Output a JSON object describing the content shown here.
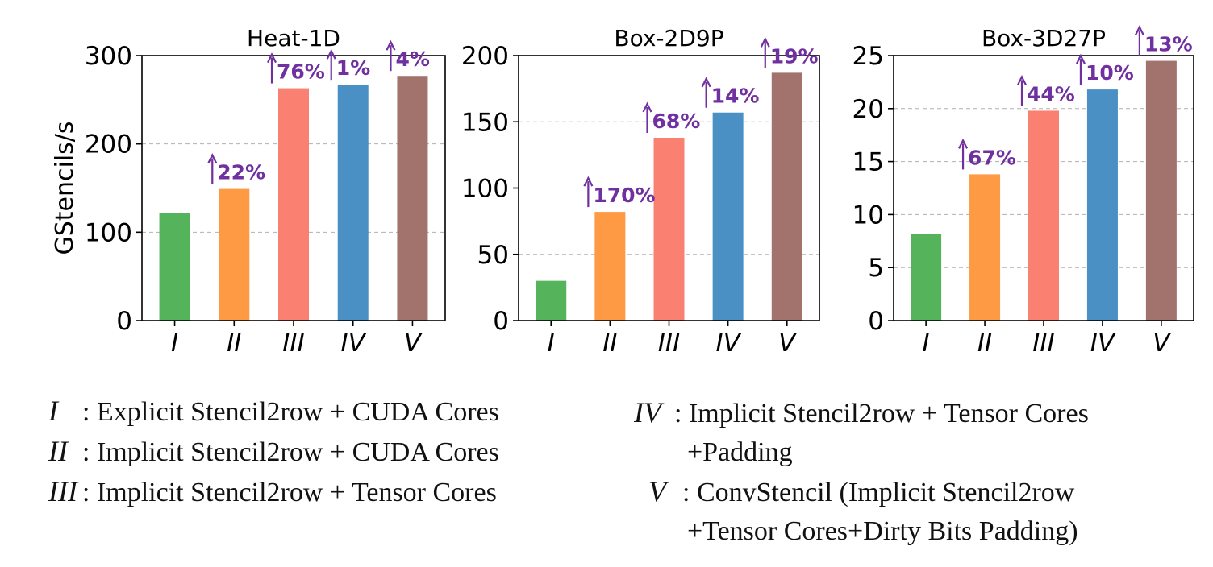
{
  "colors": {
    "I": "#55b35b",
    "II": "#fd9a43",
    "III": "#fa8072",
    "IV": "#4a90c4",
    "V": "#a1736c",
    "speedup": "#7030a0",
    "grid": "#b0b0b0"
  },
  "chart_data": [
    {
      "type": "bar",
      "title": "Heat-1D",
      "ylabel": "GStencils/s",
      "categories": [
        "I",
        "II",
        "III",
        "IV",
        "V"
      ],
      "values": [
        122,
        149,
        263,
        267,
        277
      ],
      "ylim": [
        0,
        300
      ],
      "yticks": [
        0,
        100,
        200,
        300
      ],
      "speedups": [
        "",
        "22%",
        "76%",
        "1%",
        "4%"
      ],
      "grid": true
    },
    {
      "type": "bar",
      "title": "Box-2D9P",
      "ylabel": "",
      "categories": [
        "I",
        "II",
        "III",
        "IV",
        "V"
      ],
      "values": [
        30,
        82,
        138,
        157,
        187
      ],
      "ylim": [
        0,
        200
      ],
      "yticks": [
        0,
        50,
        100,
        150,
        200
      ],
      "speedups": [
        "",
        "170%",
        "68%",
        "14%",
        "19%"
      ],
      "grid": true
    },
    {
      "type": "bar",
      "title": "Box-3D27P",
      "ylabel": "",
      "categories": [
        "I",
        "II",
        "III",
        "IV",
        "V"
      ],
      "values": [
        8.2,
        13.8,
        19.8,
        21.8,
        24.5
      ],
      "ylim": [
        0,
        25
      ],
      "yticks": [
        0,
        5,
        10,
        15,
        20,
        25
      ],
      "speedups": [
        "",
        "67%",
        "44%",
        "10%",
        "13%"
      ],
      "grid": true
    }
  ],
  "legend": {
    "left": [
      {
        "key": "I",
        "sep": ":",
        "text": " Explicit Stencil2row + CUDA Cores"
      },
      {
        "key": "II",
        "sep": ":",
        "text": " Implicit Stencil2row + CUDA Cores"
      },
      {
        "key": "III",
        "sep": ":",
        "text": " Implicit Stencil2row + Tensor Cores"
      }
    ],
    "right": [
      {
        "key": "IV",
        "sep": ":",
        "text": " Implicit Stencil2row + Tensor Cores",
        "cont": "+Padding"
      },
      {
        "key": "V",
        "sep": ":",
        "text": " ConvStencil (Implicit Stencil2row",
        "cont": "+Tensor Cores+Dirty Bits Padding)"
      }
    ]
  }
}
